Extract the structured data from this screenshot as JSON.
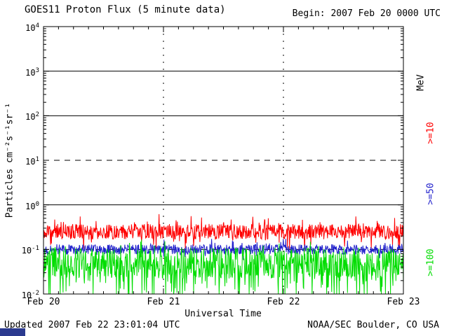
{
  "header": {
    "begin_label": "Begin: 2007 Feb 20 0000 UTC"
  },
  "footer": {
    "updated": "Updated 2007 Feb 22 23:01:04 UTC",
    "credit": "NOAA/SEC Boulder, CO USA"
  },
  "colors": {
    "background": "#ffffff",
    "axis": "#000000",
    "footer_bar": "#2b3a8f"
  },
  "chart_data": {
    "type": "line",
    "title": "GOES11 Proton Flux (5 minute data)",
    "xlabel": "Universal Time",
    "ylabel": "Particles  cm⁻²s⁻¹sr⁻¹",
    "right_axis_label": "MeV",
    "x_tick_labels": [
      "Feb 20",
      "Feb 21",
      "Feb 22",
      "Feb 23"
    ],
    "x_range": [
      "2007 Feb 20 0000 UTC",
      "2007 Feb 23 0000 UTC"
    ],
    "y_tick_exponents": [
      4,
      3,
      2,
      1,
      0,
      -1,
      -2
    ],
    "ylim_log10": [
      -2,
      4
    ],
    "days": 3,
    "points_per_day": 288,
    "grid": {
      "vertical_dashed_at": [
        "Feb 21",
        "Feb 22"
      ]
    },
    "reference_lines": [
      {
        "log10": 3,
        "style": "solid"
      },
      {
        "log10": 2,
        "style": "solid"
      },
      {
        "log10": 1,
        "style": "dashed"
      },
      {
        "log10": 0,
        "style": "solid"
      },
      {
        "log10": -1,
        "style": "dashed"
      }
    ],
    "series": [
      {
        "name": ">=10",
        "color": "#ff0000",
        "units": "MeV",
        "baseline_log10": -0.6,
        "noise_log10": 0.17,
        "spike_prob": 0.1,
        "spike_amp": 0.3,
        "dip_prob": 0.06,
        "dip_amp": 0.35,
        "seed": 11
      },
      {
        "name": ">=50",
        "color": "#2222cc",
        "units": "MeV",
        "baseline_log10": -1.0,
        "noise_log10": 0.11,
        "spike_prob": 0.06,
        "spike_amp": 0.18,
        "dip_prob": 0.05,
        "dip_amp": 0.15,
        "seed": 22
      },
      {
        "name": ">=100",
        "color": "#00dd00",
        "units": "MeV",
        "baseline_log10": -1.3,
        "noise_log10": 0.34,
        "spike_prob": 0.05,
        "spike_amp": 0.25,
        "dip_prob": 0.22,
        "dip_amp": 0.8,
        "seed": 33
      }
    ]
  }
}
